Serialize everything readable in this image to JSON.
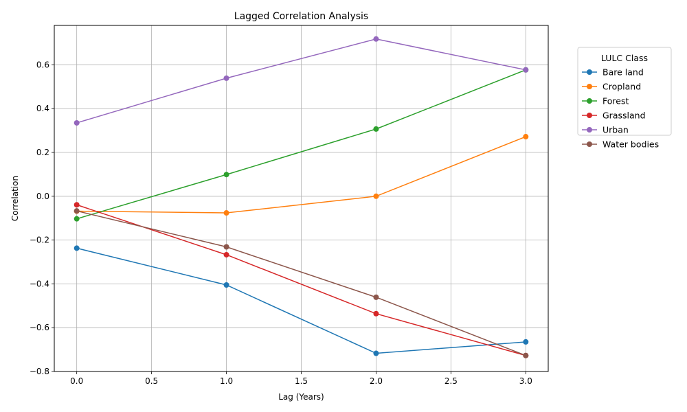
{
  "chart_data": {
    "type": "line",
    "title": "Lagged Correlation Analysis",
    "xlabel": "Lag (Years)",
    "ylabel": "Correlation",
    "x": [
      0,
      1,
      2,
      3
    ],
    "xlim": [
      -0.15,
      3.15
    ],
    "ylim": [
      -0.8,
      0.78
    ],
    "xticks": [
      0.0,
      0.5,
      1.0,
      1.5,
      2.0,
      2.5,
      3.0
    ],
    "xtick_labels": [
      "0.0",
      "0.5",
      "1.0",
      "1.5",
      "2.0",
      "2.5",
      "3.0"
    ],
    "yticks": [
      -0.8,
      -0.6,
      -0.4,
      -0.2,
      0.0,
      0.2,
      0.4,
      0.6
    ],
    "ytick_labels": [
      "−0.8",
      "−0.6",
      "−0.4",
      "−0.2",
      "0.0",
      "0.2",
      "0.4",
      "0.6"
    ],
    "grid": true,
    "legend": {
      "title": "LULC Class",
      "placement": "outside-upper-right"
    },
    "series": [
      {
        "name": "Bare land",
        "color": "#1f77b4",
        "values": [
          -0.237,
          -0.405,
          -0.717,
          -0.665
        ]
      },
      {
        "name": "Cropland",
        "color": "#ff7f0e",
        "values": [
          -0.068,
          -0.076,
          0.0,
          0.272
        ]
      },
      {
        "name": "Forest",
        "color": "#2ca02c",
        "values": [
          -0.103,
          0.099,
          0.307,
          0.577
        ]
      },
      {
        "name": "Grassland",
        "color": "#d62728",
        "values": [
          -0.039,
          -0.267,
          -0.536,
          -0.727
        ]
      },
      {
        "name": "Urban",
        "color": "#9467bd",
        "values": [
          0.335,
          0.539,
          0.718,
          0.577
        ]
      },
      {
        "name": "Water bodies",
        "color": "#8c564b",
        "values": [
          -0.067,
          -0.231,
          -0.461,
          -0.727
        ]
      }
    ]
  }
}
